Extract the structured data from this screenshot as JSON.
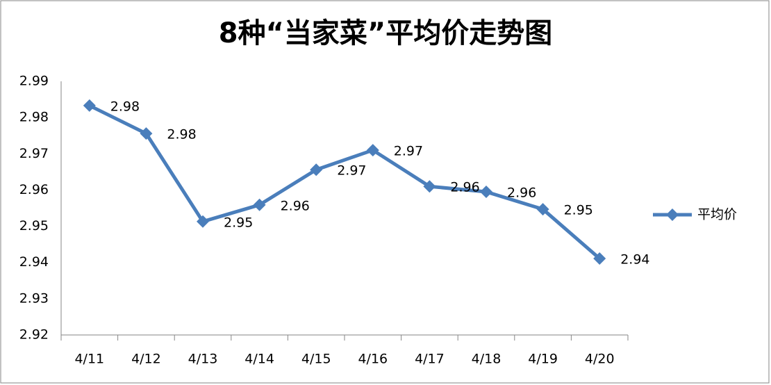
{
  "chart_data": {
    "type": "line",
    "title": "8种“当家菜”平均价走势图",
    "categories": [
      "4/11",
      "4/12",
      "4/13",
      "4/14",
      "4/15",
      "4/16",
      "4/17",
      "4/18",
      "4/19",
      "4/20"
    ],
    "series": [
      {
        "name": "平均价",
        "color": "#4a7ebb",
        "values": [
          2.9833,
          2.9756,
          2.9513,
          2.9559,
          2.9656,
          2.971,
          2.961,
          2.9595,
          2.9547,
          2.9411
        ],
        "value_labels": [
          "2.98",
          "2.98",
          "2.95",
          "2.96",
          "2.97",
          "2.97",
          "2.96",
          "2.96",
          "2.95",
          "2.94"
        ]
      }
    ],
    "ylim": [
      2.92,
      2.99
    ],
    "yticks": [
      2.92,
      2.93,
      2.94,
      2.95,
      2.96,
      2.97,
      2.98,
      2.99
    ],
    "grid": false,
    "legend": "right"
  }
}
